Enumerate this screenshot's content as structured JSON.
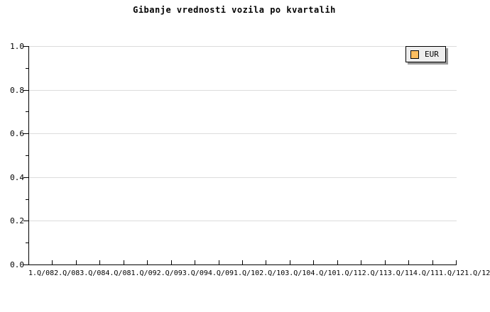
{
  "chart_data": {
    "type": "line",
    "title": "Gibanje vrednosti vozila po kvartalih",
    "categories": [
      "1.Q/08",
      "2.Q/08",
      "3.Q/08",
      "4.Q/08",
      "1.Q/09",
      "2.Q/09",
      "3.Q/09",
      "4.Q/09",
      "1.Q/10",
      "2.Q/10",
      "3.Q/10",
      "4.Q/10",
      "1.Q/11",
      "2.Q/11",
      "3.Q/11",
      "4.Q/11",
      "1.Q/12",
      "1.Q/12"
    ],
    "series": [
      {
        "name": "EUR",
        "color": "#FCBE60",
        "values": []
      }
    ],
    "xlabel": "",
    "ylabel": "",
    "ylim": [
      0,
      1.0
    ],
    "y_ticks": [
      {
        "v": 0.0,
        "label": "0.0"
      },
      {
        "v": 0.2,
        "label": "0.2"
      },
      {
        "v": 0.4,
        "label": "0.4"
      },
      {
        "v": 0.6,
        "label": "0.6"
      },
      {
        "v": 0.8,
        "label": "0.8"
      },
      {
        "v": 1.0,
        "label": "1.0"
      }
    ],
    "y_minor_tick_step": 0.1,
    "grid": "horizontal-major-on",
    "legend_position": "top-right",
    "plot_is_empty": true
  },
  "legend": {
    "items": [
      {
        "label": "EUR",
        "swatch_color": "#FCBE60"
      }
    ]
  },
  "colors": {
    "background": "#FFFFFF",
    "axis": "#000000",
    "grid": "#DCDCDC",
    "text": "#000000",
    "legend_bg": "#EEEEEE",
    "legend_shadow": "#999999"
  }
}
